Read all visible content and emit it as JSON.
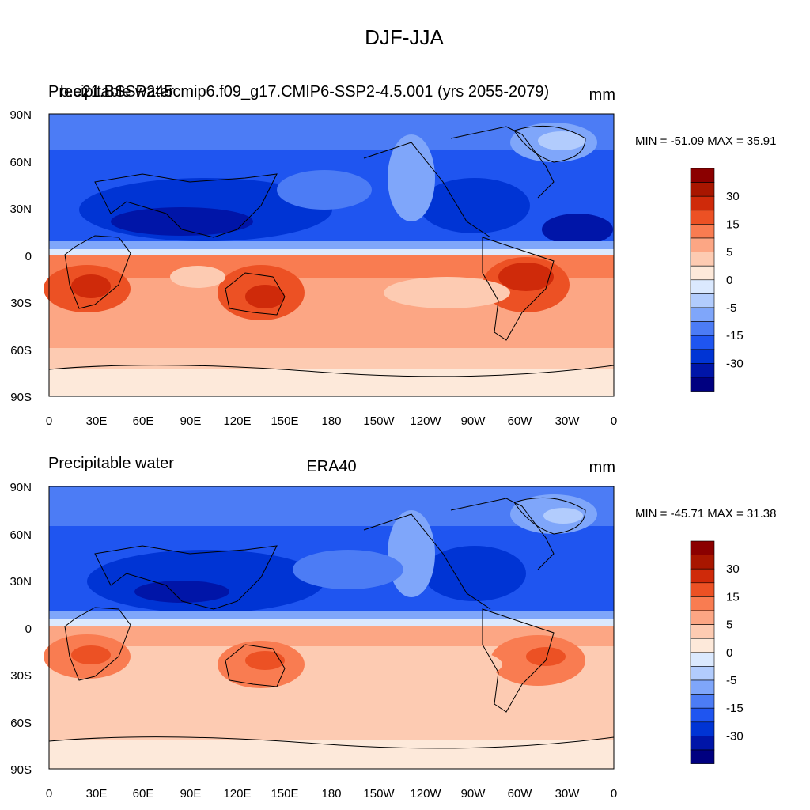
{
  "figure_title": "DJF-JJA",
  "colors": {
    "levels": [
      "#000080",
      "#0015a8",
      "#0034d4",
      "#1f55f0",
      "#4c7cf5",
      "#7fa6fa",
      "#b2ccfd",
      "#dbe9fe",
      "#fde9da",
      "#fdcbb2",
      "#fca684",
      "#f97c51",
      "#ec5124",
      "#cf2a0a",
      "#a81600",
      "#8b0000"
    ],
    "land_outline": "#000000"
  },
  "colorbar": {
    "labels": [
      "30",
      "15",
      "5",
      "0",
      "-5",
      "-15",
      "-30"
    ]
  },
  "axes": {
    "lat_labels": [
      "90N",
      "60N",
      "30N",
      "0",
      "30S",
      "60S",
      "90S"
    ],
    "lon_labels": [
      "0",
      "30E",
      "60E",
      "90E",
      "120E",
      "150E",
      "180",
      "150W",
      "120W",
      "90W",
      "60W",
      "30W",
      "0"
    ]
  },
  "panels": [
    {
      "left_title": "Precipitable water",
      "overlay_title": "b.e21.BSSP245cmip6.f09_g17.CMIP6-SSP2-4.5.001 (yrs 2055-2079)",
      "center_title": "",
      "units": "mm",
      "minmax": "MIN = -51.09 MAX =  35.91",
      "min": -51.09,
      "max": 35.91
    },
    {
      "left_title": "Precipitable water",
      "overlay_title": "",
      "center_title": "ERA40",
      "units": "mm",
      "minmax": "MIN = -45.71 MAX =  31.38",
      "min": -45.71,
      "max": 31.38
    }
  ]
}
